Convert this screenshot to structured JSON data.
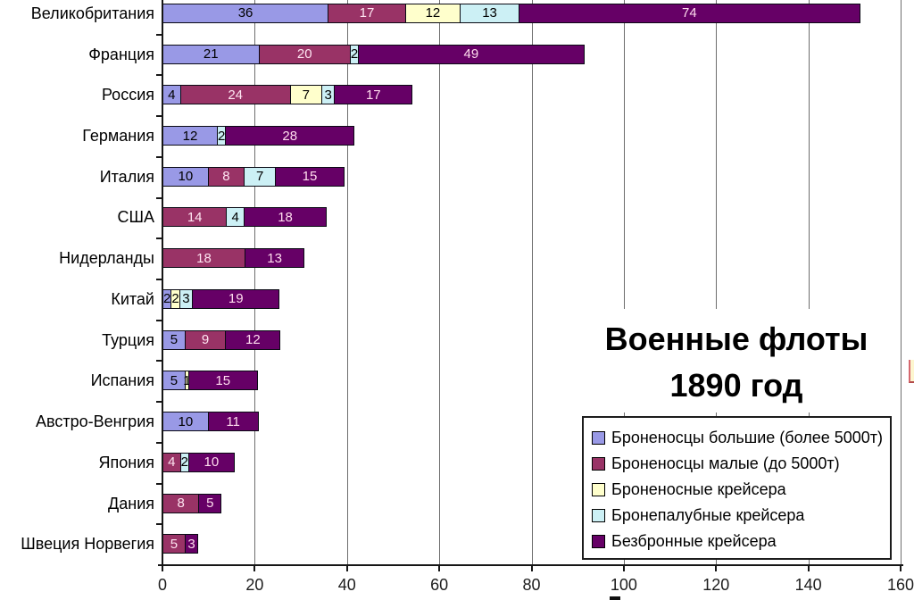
{
  "chart_data": {
    "type": "bar",
    "orientation": "horizontal-stacked",
    "title_lines": [
      "Военные флоты",
      "1890 год"
    ],
    "x_axis": {
      "min": 0,
      "max": 160,
      "tick_step": 20,
      "ticks": [
        0,
        20,
        40,
        60,
        80,
        100,
        120,
        140,
        160
      ]
    },
    "grid": "vertical-lines-on",
    "legend_position": "bottom-right-box",
    "series": [
      {
        "name": "Броненосцы большие (более 5000т)",
        "color": "#9999E6",
        "label_color": "#000000"
      },
      {
        "name": "Броненосцы малые (до 5000т)",
        "color": "#993366",
        "label_color": "#FFE6F2"
      },
      {
        "name": "Броненосные крейсера",
        "color": "#FFFFCC",
        "label_color": "#000000"
      },
      {
        "name": "Бронепалубные крейсера",
        "color": "#CCF0F5",
        "label_color": "#000000"
      },
      {
        "name": "Безбронные крейсера",
        "color": "#660066",
        "label_color": "#FFDCEE"
      }
    ],
    "categories": [
      "Великобритания",
      "Франция",
      "Россия",
      "Германия",
      "Италия",
      "США",
      "Нидерланды",
      "Китай",
      "Турция",
      "Испания",
      "Австро-Венгрия",
      "Япония",
      "Дания",
      "Швеция Норвегия"
    ],
    "values": [
      [
        36,
        17,
        12,
        13,
        74
      ],
      [
        21,
        20,
        0,
        2,
        49
      ],
      [
        4,
        24,
        7,
        3,
        17
      ],
      [
        12,
        0,
        0,
        2,
        28
      ],
      [
        10,
        8,
        0,
        7,
        15
      ],
      [
        0,
        14,
        0,
        4,
        18
      ],
      [
        0,
        18,
        0,
        0,
        13
      ],
      [
        2,
        0,
        2,
        3,
        19
      ],
      [
        5,
        9,
        0,
        0,
        12
      ],
      [
        5,
        0,
        1,
        0,
        15
      ],
      [
        10,
        0,
        0,
        0,
        11
      ],
      [
        0,
        4,
        0,
        2,
        10
      ],
      [
        0,
        8,
        0,
        0,
        5
      ],
      [
        0,
        5,
        0,
        0,
        3
      ]
    ]
  }
}
